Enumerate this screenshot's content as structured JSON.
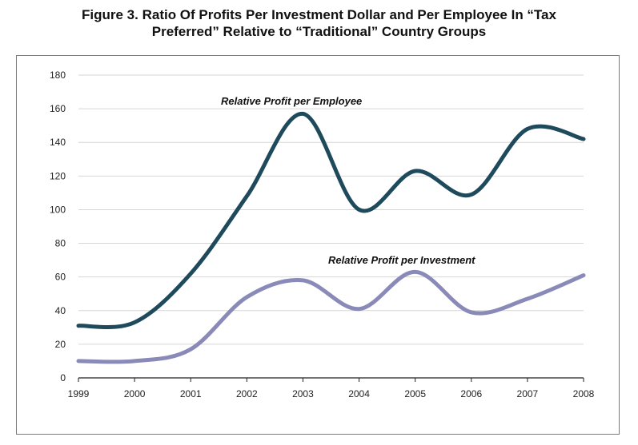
{
  "title_line1": "Figure 3. Ratio Of Profits Per Investment Dollar and Per Employee In “Tax",
  "title_line2": "Preferred” Relative to “Traditional” Country Groups",
  "chart_data": {
    "type": "line",
    "title": "Figure 3. Ratio Of Profits Per Investment Dollar and Per Employee In “Tax Preferred” Relative to “Traditional” Country Groups",
    "x": [
      1999,
      2000,
      2001,
      2002,
      2003,
      2004,
      2005,
      2006,
      2007,
      2008
    ],
    "xticks": [
      "1999",
      "2000",
      "2001",
      "2002",
      "2003",
      "2004",
      "2005",
      "2006",
      "2007",
      "2008"
    ],
    "yticks": [
      "0",
      "20",
      "40",
      "60",
      "80",
      "100",
      "120",
      "140",
      "160",
      "180"
    ],
    "ylim": [
      0,
      180
    ],
    "xlim": [
      1999,
      2008
    ],
    "grid": "horizontal",
    "series": [
      {
        "name": "Relative Profit per Employee",
        "color": "#1e4a5c",
        "values": [
          31,
          33,
          62,
          108,
          157,
          100,
          123,
          109,
          148,
          142
        ]
      },
      {
        "name": "Relative Profit per Investment",
        "color": "#8a8ab8",
        "values": [
          10,
          10,
          17,
          48,
          58,
          41,
          63,
          39,
          47,
          61
        ]
      }
    ]
  }
}
